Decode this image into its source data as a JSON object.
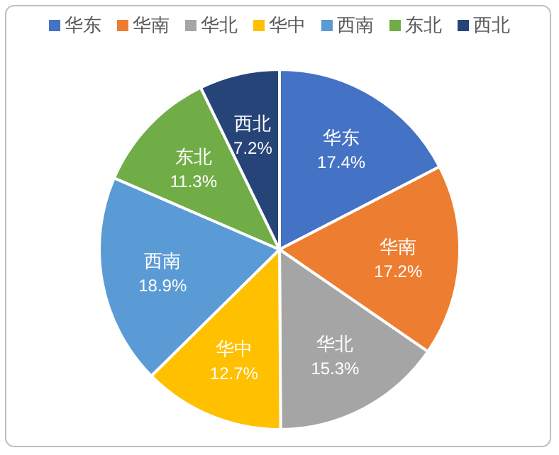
{
  "chart_data": {
    "type": "pie",
    "categories": [
      "华东",
      "华南",
      "华北",
      "华中",
      "西南",
      "东北",
      "西北"
    ],
    "values": [
      17.4,
      17.2,
      15.3,
      12.7,
      18.9,
      11.3,
      7.2
    ],
    "colors": [
      "#4472c4",
      "#ed7d31",
      "#a5a5a5",
      "#ffc000",
      "#5b9bd5",
      "#70ad47",
      "#264478"
    ],
    "value_labels": [
      "17.4%",
      "17.2%",
      "15.3%",
      "12.7%",
      "18.9%",
      "11.3%",
      "7.2%"
    ],
    "legend": "top"
  }
}
